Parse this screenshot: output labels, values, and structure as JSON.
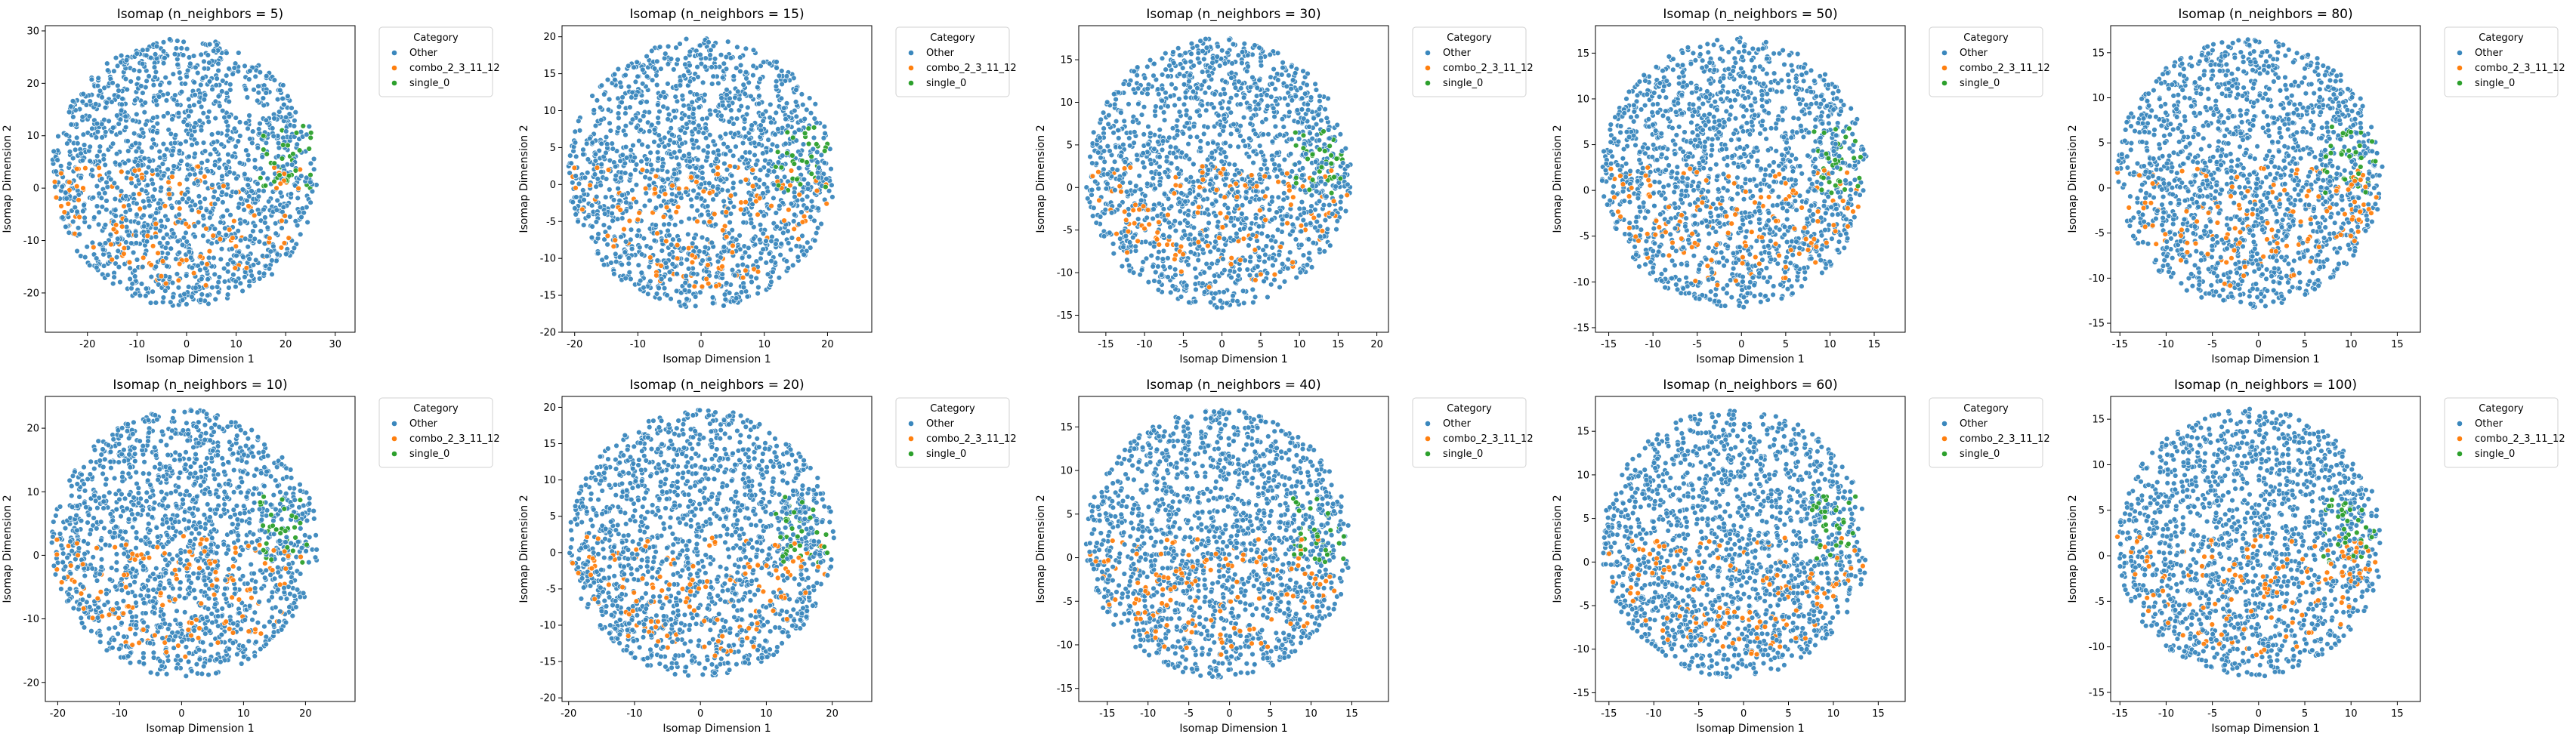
{
  "figure": {
    "legend_title": "Category",
    "categories": [
      "Other",
      "combo_2_3_11_12",
      "single_0"
    ],
    "colors": {
      "Other": "#3a87bd",
      "combo_2_3_11_12": "#ff7f0e",
      "single_0": "#2ca02c"
    },
    "xlabel": "Isomap Dimension 1",
    "ylabel": "Isomap Dimension 2",
    "legend_placement": "outside-right-upper"
  },
  "chart_data": [
    {
      "type": "scatter",
      "title": "Isomap (n_neighbors = 5)",
      "xlim": [
        -28.5,
        34
      ],
      "ylim": [
        -27.5,
        31
      ],
      "xticks": [
        -20,
        -10,
        0,
        10,
        20,
        30
      ],
      "yticks": [
        -20,
        -10,
        0,
        10,
        20,
        30
      ],
      "point_counts": {
        "Other": 1600,
        "combo_2_3_11_12": 130,
        "single_0": 35
      }
    },
    {
      "type": "scatter",
      "title": "Isomap (n_neighbors = 15)",
      "xlim": [
        -22,
        27
      ],
      "ylim": [
        -20,
        21.5
      ],
      "xticks": [
        -20,
        -10,
        0,
        10,
        20
      ],
      "yticks": [
        -20,
        -15,
        -10,
        -5,
        0,
        5,
        10,
        15,
        20
      ],
      "point_counts": {
        "Other": 1600,
        "combo_2_3_11_12": 130,
        "single_0": 35
      }
    },
    {
      "type": "scatter",
      "title": "Isomap (n_neighbors = 30)",
      "xlim": [
        -18.5,
        21.5
      ],
      "ylim": [
        -17,
        19
      ],
      "xticks": [
        -15,
        -10,
        -5,
        0,
        5,
        10,
        15,
        20
      ],
      "yticks": [
        -15,
        -10,
        -5,
        0,
        5,
        10,
        15
      ],
      "point_counts": {
        "Other": 1600,
        "combo_2_3_11_12": 130,
        "single_0": 35
      }
    },
    {
      "type": "scatter",
      "title": "Isomap (n_neighbors = 50)",
      "xlim": [
        -16.5,
        18.5
      ],
      "ylim": [
        -15.5,
        18
      ],
      "xticks": [
        -15,
        -10,
        -5,
        0,
        5,
        10,
        15
      ],
      "yticks": [
        -15,
        -10,
        -5,
        0,
        5,
        10,
        15
      ],
      "point_counts": {
        "Other": 1600,
        "combo_2_3_11_12": 130,
        "single_0": 35
      }
    },
    {
      "type": "scatter",
      "title": "Isomap (n_neighbors = 80)",
      "xlim": [
        -16,
        17.5
      ],
      "ylim": [
        -16,
        18
      ],
      "xticks": [
        -15,
        -10,
        -5,
        0,
        5,
        10,
        15
      ],
      "yticks": [
        -15,
        -10,
        -5,
        0,
        5,
        10,
        15
      ],
      "point_counts": {
        "Other": 1600,
        "combo_2_3_11_12": 130,
        "single_0": 35
      }
    },
    {
      "type": "scatter",
      "title": "Isomap (n_neighbors = 10)",
      "xlim": [
        -22,
        28
      ],
      "ylim": [
        -23,
        25
      ],
      "xticks": [
        -20,
        -10,
        0,
        10,
        20
      ],
      "yticks": [
        -20,
        -10,
        0,
        10,
        20
      ],
      "point_counts": {
        "Other": 1600,
        "combo_2_3_11_12": 130,
        "single_0": 35
      }
    },
    {
      "type": "scatter",
      "title": "Isomap (n_neighbors = 20)",
      "xlim": [
        -21,
        26
      ],
      "ylim": [
        -20.5,
        21.5
      ],
      "xticks": [
        -20,
        -10,
        0,
        10,
        20
      ],
      "yticks": [
        -20,
        -15,
        -10,
        -5,
        0,
        5,
        10,
        15,
        20
      ],
      "point_counts": {
        "Other": 1600,
        "combo_2_3_11_12": 130,
        "single_0": 35
      }
    },
    {
      "type": "scatter",
      "title": "Isomap (n_neighbors = 40)",
      "xlim": [
        -18.5,
        19.5
      ],
      "ylim": [
        -16.5,
        18.5
      ],
      "xticks": [
        -15,
        -10,
        -5,
        0,
        5,
        10,
        15
      ],
      "yticks": [
        -15,
        -10,
        -5,
        0,
        5,
        10,
        15
      ],
      "point_counts": {
        "Other": 1600,
        "combo_2_3_11_12": 130,
        "single_0": 35
      }
    },
    {
      "type": "scatter",
      "title": "Isomap (n_neighbors = 60)",
      "xlim": [
        -16.5,
        18
      ],
      "ylim": [
        -16,
        19
      ],
      "xticks": [
        -15,
        -10,
        -5,
        0,
        5,
        10,
        15
      ],
      "yticks": [
        -15,
        -10,
        -5,
        0,
        5,
        10,
        15
      ],
      "point_counts": {
        "Other": 1600,
        "combo_2_3_11_12": 130,
        "single_0": 35
      }
    },
    {
      "type": "scatter",
      "title": "Isomap (n_neighbors = 100)",
      "xlim": [
        -16,
        17.5
      ],
      "ylim": [
        -16,
        17.5
      ],
      "xticks": [
        -15,
        -10,
        -5,
        0,
        5,
        10,
        15
      ],
      "yticks": [
        -15,
        -10,
        -5,
        0,
        5,
        10,
        15
      ],
      "point_counts": {
        "Other": 1600,
        "combo_2_3_11_12": 130,
        "single_0": 35
      }
    }
  ]
}
